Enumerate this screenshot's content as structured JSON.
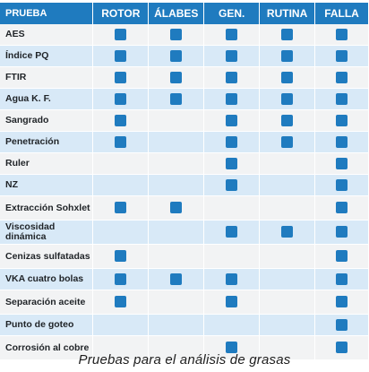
{
  "table": {
    "headers": [
      "PRUEBA",
      "ROTOR",
      "ÁLABES",
      "GEN.",
      "RUTINA",
      "FALLA"
    ],
    "rows": [
      {
        "name": "AES",
        "marks": [
          true,
          true,
          true,
          true,
          true
        ]
      },
      {
        "name": "Índice PQ",
        "marks": [
          true,
          true,
          true,
          true,
          true
        ]
      },
      {
        "name": "FTIR",
        "marks": [
          true,
          true,
          true,
          true,
          true
        ]
      },
      {
        "name": "Agua K. F.",
        "marks": [
          true,
          true,
          true,
          true,
          true
        ]
      },
      {
        "name": "Sangrado",
        "marks": [
          true,
          false,
          true,
          true,
          true
        ]
      },
      {
        "name": "Penetración",
        "marks": [
          true,
          false,
          true,
          true,
          true
        ]
      },
      {
        "name": "Ruler",
        "marks": [
          false,
          false,
          true,
          false,
          true
        ]
      },
      {
        "name": "NZ",
        "marks": [
          false,
          false,
          true,
          false,
          true
        ]
      },
      {
        "name": "Extracción Sohxlet",
        "marks": [
          true,
          true,
          false,
          false,
          true
        ]
      },
      {
        "name": "Viscosidad dinámica",
        "marks": [
          false,
          false,
          true,
          true,
          true
        ]
      },
      {
        "name": "Cenizas sulfatadas",
        "marks": [
          true,
          false,
          false,
          false,
          true
        ]
      },
      {
        "name": "VKA cuatro bolas",
        "marks": [
          true,
          true,
          true,
          false,
          true
        ]
      },
      {
        "name": "Separación aceite",
        "marks": [
          true,
          false,
          true,
          false,
          true
        ]
      },
      {
        "name": "Punto de goteo",
        "marks": [
          false,
          false,
          false,
          false,
          true
        ]
      },
      {
        "name": "Corrosión al cobre",
        "marks": [
          false,
          false,
          true,
          false,
          true
        ]
      }
    ]
  },
  "caption": "Pruebas para el análisis de grasas",
  "colors": {
    "header": "#1f7bbf",
    "mark": "#1f7bbf",
    "row_light": "#f2f3f4",
    "row_blue": "#d8e9f7"
  }
}
